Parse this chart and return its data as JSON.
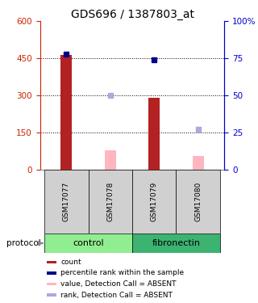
{
  "title": "GDS696 / 1387803_at",
  "samples": [
    "GSM17077",
    "GSM17078",
    "GSM17079",
    "GSM17080"
  ],
  "left_ylim": [
    0,
    600
  ],
  "left_yticks": [
    0,
    150,
    300,
    450,
    600
  ],
  "right_yticks": [
    0,
    25,
    50,
    75,
    100
  ],
  "right_yticklabels": [
    "0",
    "25",
    "50",
    "75",
    "100%"
  ],
  "bar_values": [
    463,
    0,
    290,
    0
  ],
  "bar_absent_values": [
    0,
    80,
    0,
    55
  ],
  "bar_color_present": "#B22222",
  "bar_color_absent": "#FFB6C1",
  "rank_values": [
    78,
    0,
    74,
    0
  ],
  "rank_absent_values": [
    0,
    50,
    0,
    27
  ],
  "rank_color_present": "#00008B",
  "rank_color_absent": "#AAAADD",
  "bar_width": 0.25,
  "control_color": "#90EE90",
  "fibronectin_color": "#3CB371",
  "gray_box_color": "#D0D0D0",
  "legend_items": [
    {
      "color": "#B22222",
      "label": "count"
    },
    {
      "color": "#00008B",
      "label": "percentile rank within the sample"
    },
    {
      "color": "#FFB6C1",
      "label": "value, Detection Call = ABSENT"
    },
    {
      "color": "#AAAADD",
      "label": "rank, Detection Call = ABSENT"
    }
  ],
  "left_axis_color": "#CC2200",
  "right_axis_color": "#0000CC",
  "title_fontsize": 10,
  "grid_yticks": [
    150,
    300,
    450
  ]
}
